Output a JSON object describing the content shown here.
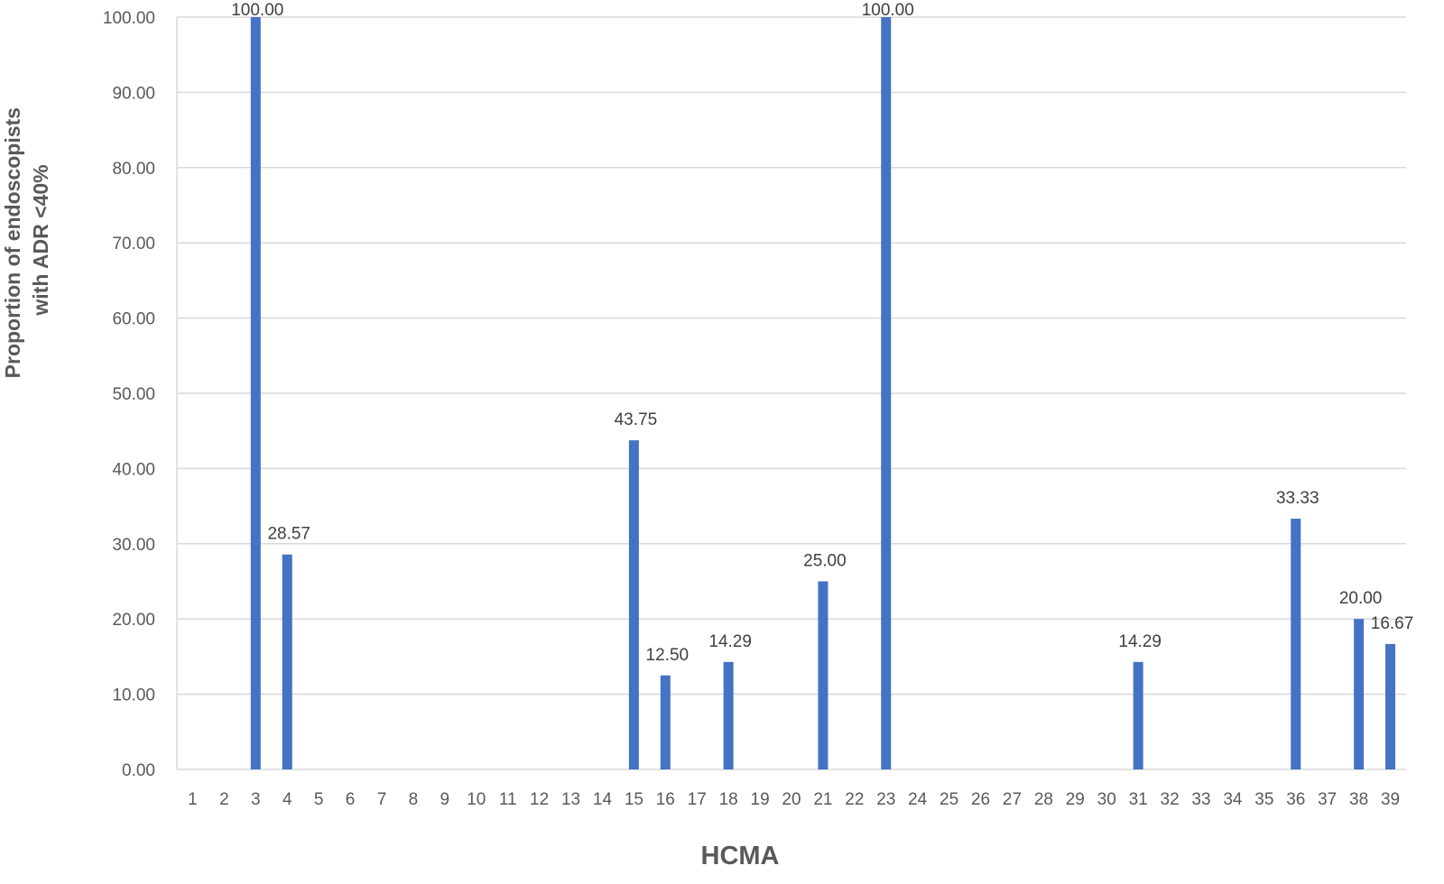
{
  "chart_data": {
    "type": "bar",
    "title": "",
    "xlabel": "HCMA",
    "ylabel_lines": [
      "Proportion of endoscopists",
      "with ADR <40%"
    ],
    "ylim": [
      0,
      100
    ],
    "y_ticks": [
      "0.00",
      "10.00",
      "20.00",
      "30.00",
      "40.00",
      "50.00",
      "60.00",
      "70.00",
      "80.00",
      "90.00",
      "100.00"
    ],
    "grid": true,
    "bar_color": "#4472c4",
    "categories": [
      "1",
      "2",
      "3",
      "4",
      "5",
      "6",
      "7",
      "8",
      "9",
      "10",
      "11",
      "12",
      "13",
      "14",
      "15",
      "16",
      "17",
      "18",
      "19",
      "20",
      "21",
      "22",
      "23",
      "24",
      "25",
      "26",
      "27",
      "28",
      "29",
      "30",
      "31",
      "32",
      "33",
      "34",
      "35",
      "36",
      "37",
      "38",
      "39"
    ],
    "values": [
      0,
      0,
      100,
      28.57,
      0,
      0,
      0,
      0,
      0,
      0,
      0,
      0,
      0,
      0,
      43.75,
      12.5,
      0,
      14.29,
      0,
      0,
      25,
      0,
      100,
      0,
      0,
      0,
      0,
      0,
      0,
      0,
      14.29,
      0,
      0,
      0,
      0,
      33.33,
      0,
      20,
      16.67
    ],
    "data_labels": [
      "",
      "",
      "100.00",
      "28.57",
      "",
      "",
      "",
      "",
      "",
      "",
      "",
      "",
      "",
      "",
      "43.75",
      "12.50",
      "",
      "14.29",
      "",
      "",
      "25.00",
      "",
      "100.00",
      "",
      "",
      "",
      "",
      "",
      "",
      "",
      "14.29",
      "",
      "",
      "",
      "",
      "33.33",
      "",
      "20.00",
      "16.67"
    ]
  }
}
